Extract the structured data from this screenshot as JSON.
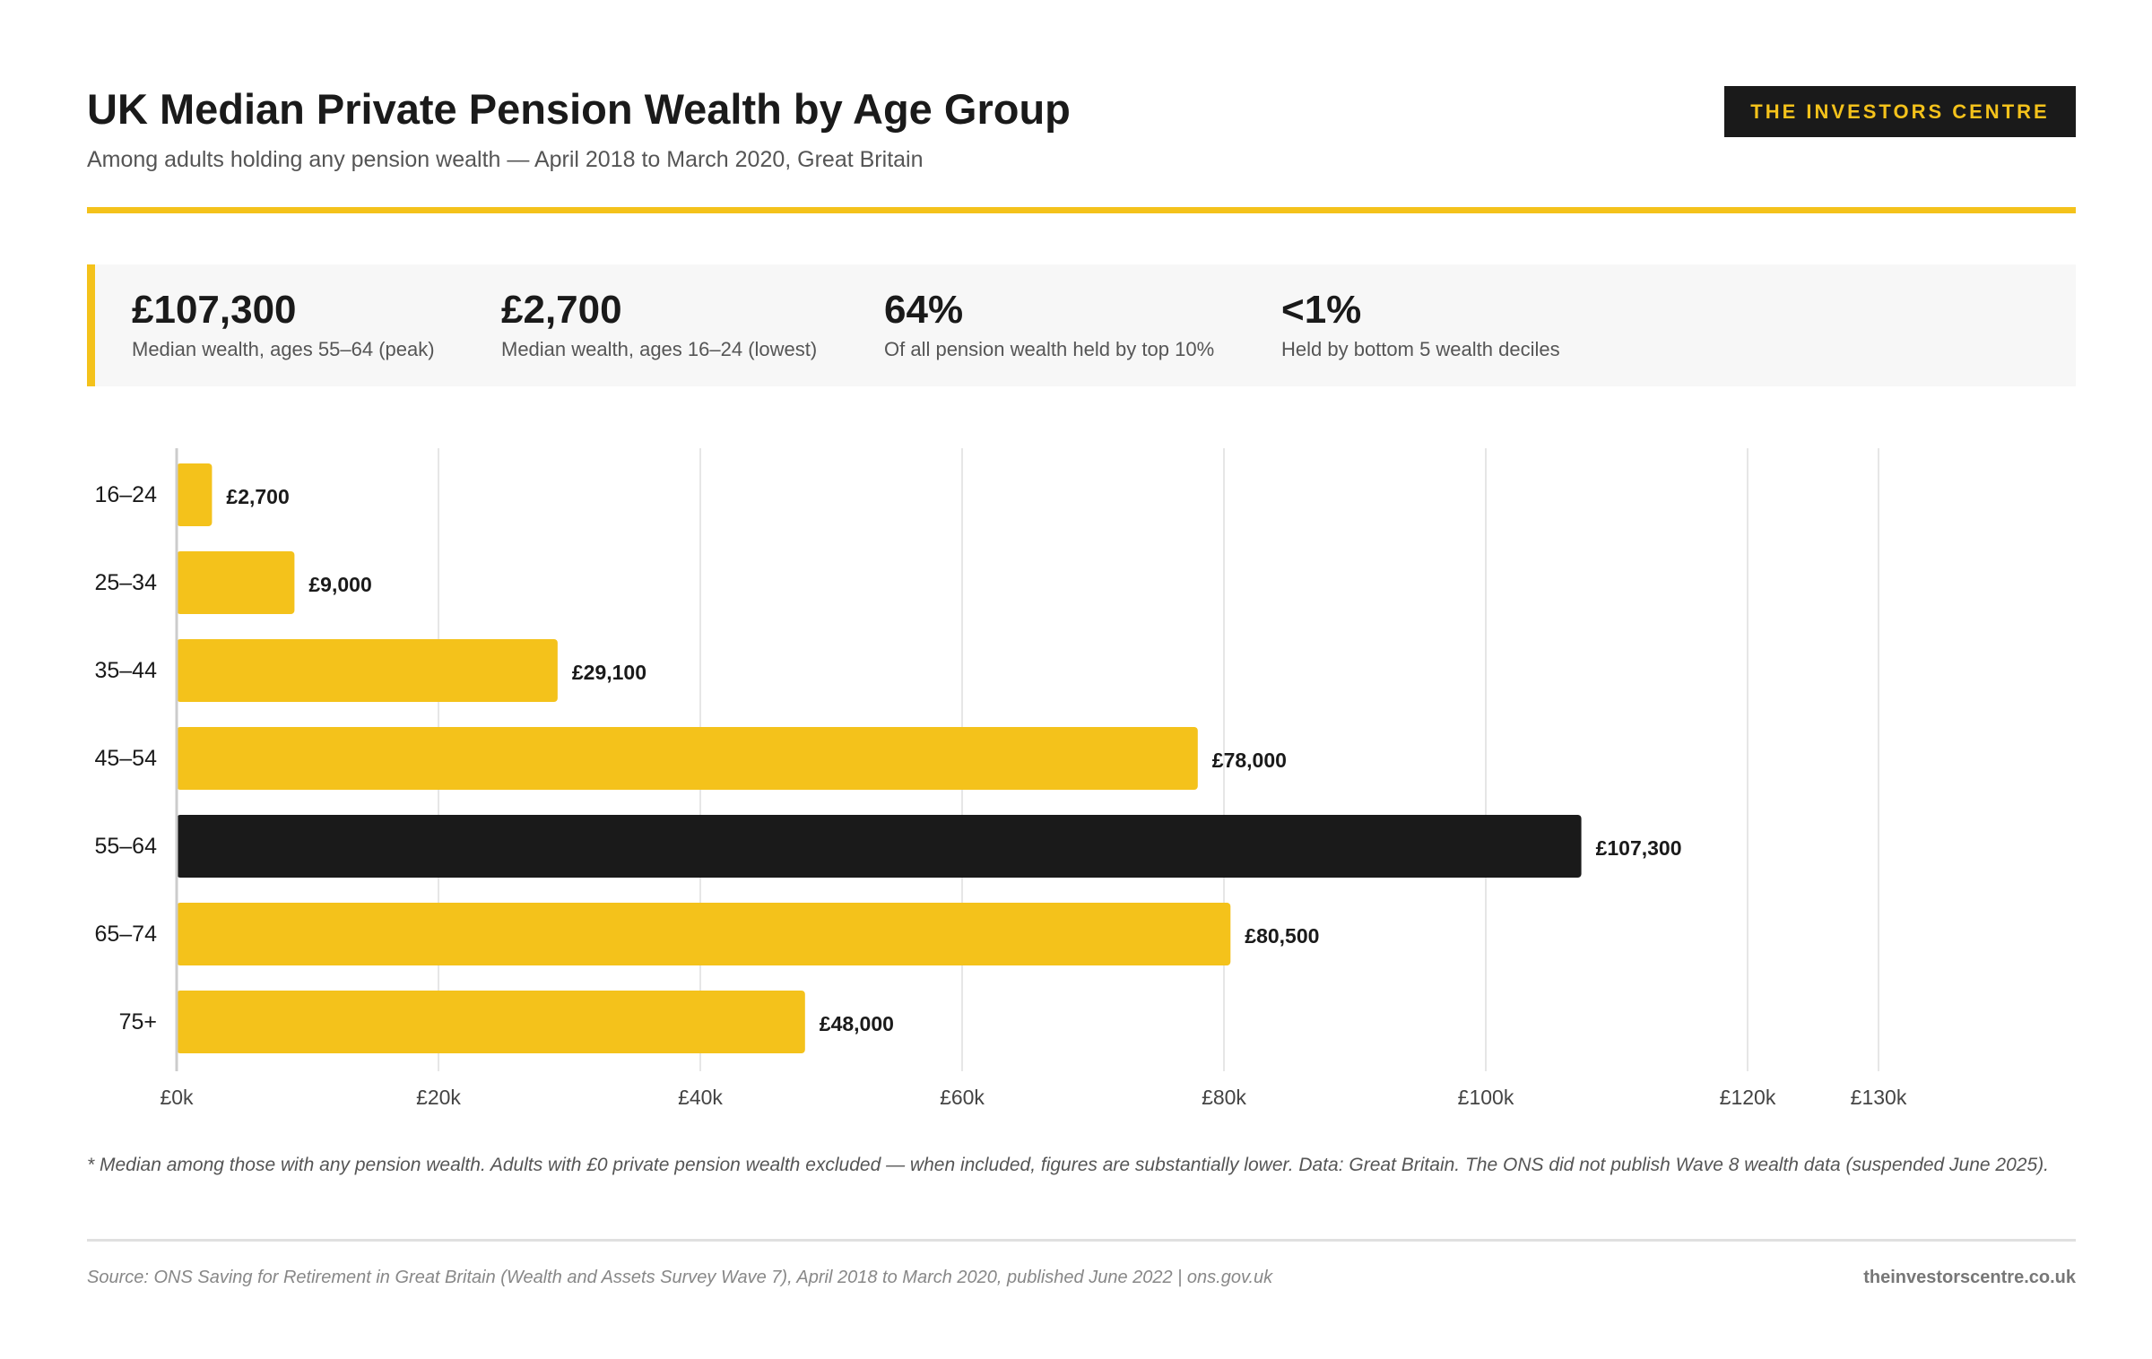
{
  "header": {
    "title": "UK Median Private Pension Wealth by Age Group",
    "subtitle": "Among adults holding any pension wealth — April 2018 to March 2020, Great Britain",
    "brand": "THE INVESTORS CENTRE"
  },
  "stats": [
    {
      "value": "£107,300",
      "label": "Median wealth, ages 55–64 (peak)"
    },
    {
      "value": "£2,700",
      "label": "Median wealth, ages 16–24 (lowest)"
    },
    {
      "value": "64%",
      "label": "Of all pension wealth held by top 10%"
    },
    {
      "value": "<1%",
      "label": "Held by bottom 5 wealth deciles"
    }
  ],
  "colors": {
    "accent": "#f4c21b",
    "highlight": "#1a1a1a",
    "grid": "#e6e6e6"
  },
  "chart_data": {
    "type": "bar",
    "orientation": "horizontal",
    "categories": [
      "16–24",
      "25–34",
      "35–44",
      "45–54",
      "55–64",
      "65–74",
      "75+"
    ],
    "values": [
      2700,
      9000,
      29100,
      78000,
      107300,
      80500,
      48000
    ],
    "value_labels": [
      "£2,700",
      "£9,000",
      "£29,100",
      "£78,000",
      "£107,300",
      "£80,500",
      "£48,000"
    ],
    "highlight_index": 4,
    "xticks": [
      0,
      20000,
      40000,
      60000,
      80000,
      100000,
      120000,
      130000
    ],
    "xtick_labels": [
      "£0k",
      "£20k",
      "£40k",
      "£60k",
      "£80k",
      "£100k",
      "£120k",
      "£130k"
    ],
    "xlim": [
      0,
      130000
    ],
    "grid": true,
    "title": "",
    "xlabel": "",
    "ylabel": ""
  },
  "footnote": "* Median among those with any pension wealth. Adults with £0 private pension wealth excluded — when included, figures are substantially lower. Data: Great Britain. The ONS did not publish Wave 8 wealth data (suspended June 2025).",
  "footer": {
    "source": "Source: ONS Saving for Retirement in Great Britain (Wealth and Assets Survey Wave 7), April 2018 to March 2020, published June 2022 | ons.gov.uk",
    "site": "theinvestorscentre.co.uk"
  }
}
